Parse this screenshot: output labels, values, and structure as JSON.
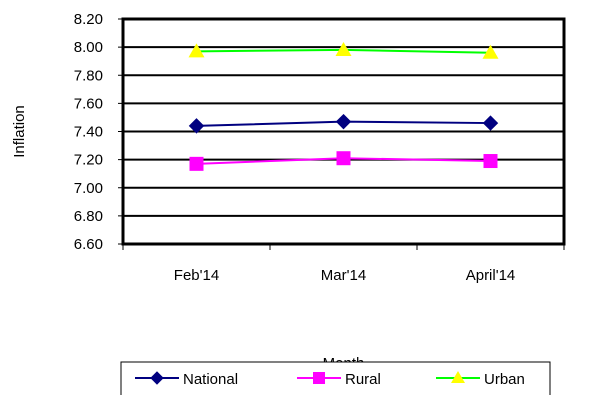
{
  "chart_data": {
    "type": "line",
    "title": "",
    "xlabel": "Month",
    "ylabel": "Inflation",
    "categories": [
      "Feb'14",
      "Mar'14",
      "April'14"
    ],
    "ylim": [
      6.6,
      8.2
    ],
    "y_ticks": [
      "6.60",
      "6.80",
      "7.00",
      "7.20",
      "7.40",
      "7.60",
      "7.80",
      "8.00",
      "8.20"
    ],
    "grid": true,
    "legend_position": "bottom",
    "series": [
      {
        "name": "National",
        "values": [
          7.44,
          7.47,
          7.46
        ],
        "color": "#000080",
        "marker": "diamond"
      },
      {
        "name": "Rural",
        "values": [
          7.17,
          7.21,
          7.19
        ],
        "color": "#FF00FF",
        "marker": "square"
      },
      {
        "name": "Urban",
        "values": [
          7.97,
          7.98,
          7.96
        ],
        "color": "#00FF00",
        "marker_color": "#FFFF00",
        "marker": "triangle"
      }
    ]
  }
}
